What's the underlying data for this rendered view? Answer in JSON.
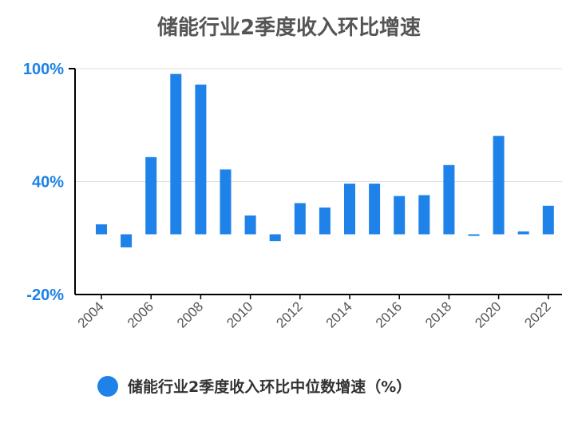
{
  "chart_data": {
    "type": "bar",
    "title": "储能行业2季度收入环比增速",
    "categories": [
      "2004",
      "2005",
      "2006",
      "2007",
      "2008",
      "2009",
      "2010",
      "2011",
      "2012",
      "2013",
      "2014",
      "2015",
      "2016",
      "2017",
      "2018",
      "2019",
      "2020",
      "2021",
      "2022"
    ],
    "series": [
      {
        "name": "储能行业2季度收入环比中位数增速（%）",
        "values": [
          12,
          -1,
          50,
          97,
          91,
          43,
          17,
          2.5,
          24,
          21.5,
          35,
          35,
          28,
          28.5,
          45.5,
          6,
          62,
          8,
          22.5
        ]
      }
    ],
    "x_tick_labels": [
      "2004",
      "2006",
      "2008",
      "2010",
      "2012",
      "2014",
      "2016",
      "2018",
      "2020",
      "2022"
    ],
    "y_tick_labels": [
      "100%",
      "40%",
      "-20%"
    ],
    "y_ticks": [
      100,
      40,
      -20
    ],
    "ylim": [
      -20,
      100
    ],
    "xlabel": "",
    "ylabel": "",
    "grid": true,
    "legend_position": "bottom",
    "colors": {
      "bar": "#1e82e8",
      "axis_label": "#1e82e8",
      "title": "#555555",
      "grid": "#dddddd"
    }
  }
}
